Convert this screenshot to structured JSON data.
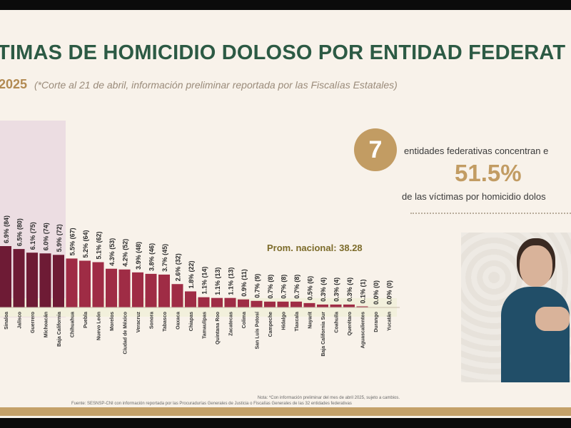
{
  "title": "TIMAS DE HOMICIDIO DOLOSO POR ENTIDAD FEDERAT",
  "subtitle_year": "2025",
  "subtitle_note": "(*Corte al 21 de abril, información preliminar reportada por las Fiscalías Estatales)",
  "stat": {
    "badge": "7",
    "line1": "entidades federativas concentran e",
    "percent": "51.5%",
    "line2": "de las víctimas por homicidio dolos"
  },
  "prom_label": "Prom. nacional: 38.28",
  "footnote_note": "Nota: *Con información preliminar del mes de abril 2025, sujeto a cambios.",
  "footnote_source": "Fuente: SESNSP-CNI con información reportada por las Procuradurías Generales de Justicia o Fiscalías Generales de las 32 entidades federativas",
  "colors": {
    "bar_dark": "#6e1b35",
    "bar_light": "#9f2c45",
    "accent_gold": "#c29c63",
    "title_green": "#2c5a44"
  },
  "chart_data": {
    "type": "bar",
    "categories": [
      "Sinaloa",
      "Jalisco",
      "Guerrero",
      "Michoacán",
      "Baja California",
      "Chihuahua",
      "Puebla",
      "Nuevo León",
      "Morelos",
      "Ciudad de México",
      "Veracruz",
      "Sonora",
      "Tabasco",
      "Oaxaca",
      "Chiapas",
      "Tamaulipas",
      "Quintana Roo",
      "Zacatecas",
      "Colima",
      "San Luis Potosí",
      "Campeche",
      "Hidalgo",
      "Tlaxcala",
      "Nayarit",
      "Baja California Sur",
      "Coahuila",
      "Querétaro",
      "Aguascalientes",
      "Durango",
      "Yucatán"
    ],
    "values": [
      84,
      80,
      75,
      74,
      72,
      67,
      64,
      62,
      53,
      52,
      48,
      46,
      45,
      32,
      22,
      14,
      13,
      13,
      11,
      9,
      8,
      8,
      8,
      6,
      4,
      4,
      4,
      1,
      0,
      0
    ],
    "labels": [
      "6.9% (84)",
      "6.5% (80)",
      "6.1% (75)",
      "6.0% (74)",
      "5.9% (72)",
      "5.5% (67)",
      "5.2% (64)",
      "5.1% (62)",
      "4.3% (53)",
      "4.2% (52)",
      "3.9% (48)",
      "3.8% (46)",
      "3.7% (45)",
      "2.6% (32)",
      "1.8% (22)",
      "1.1% (14)",
      "1.1% (13)",
      "1.1% (13)",
      "0.9% (11)",
      "0.7% (9)",
      "0.7% (8)",
      "0.7% (8)",
      "0.7% (8)",
      "0.5% (6)",
      "0.3% (4)",
      "0.3% (4)",
      "0.3% (4)",
      "0.1% (1)",
      "0.0% (0)",
      "0.0% (0)"
    ],
    "reference_line": {
      "label": "Prom. nacional: 38.28",
      "value": 38.28
    },
    "highlighted_count": 5,
    "ylim": [
      0,
      84
    ]
  }
}
